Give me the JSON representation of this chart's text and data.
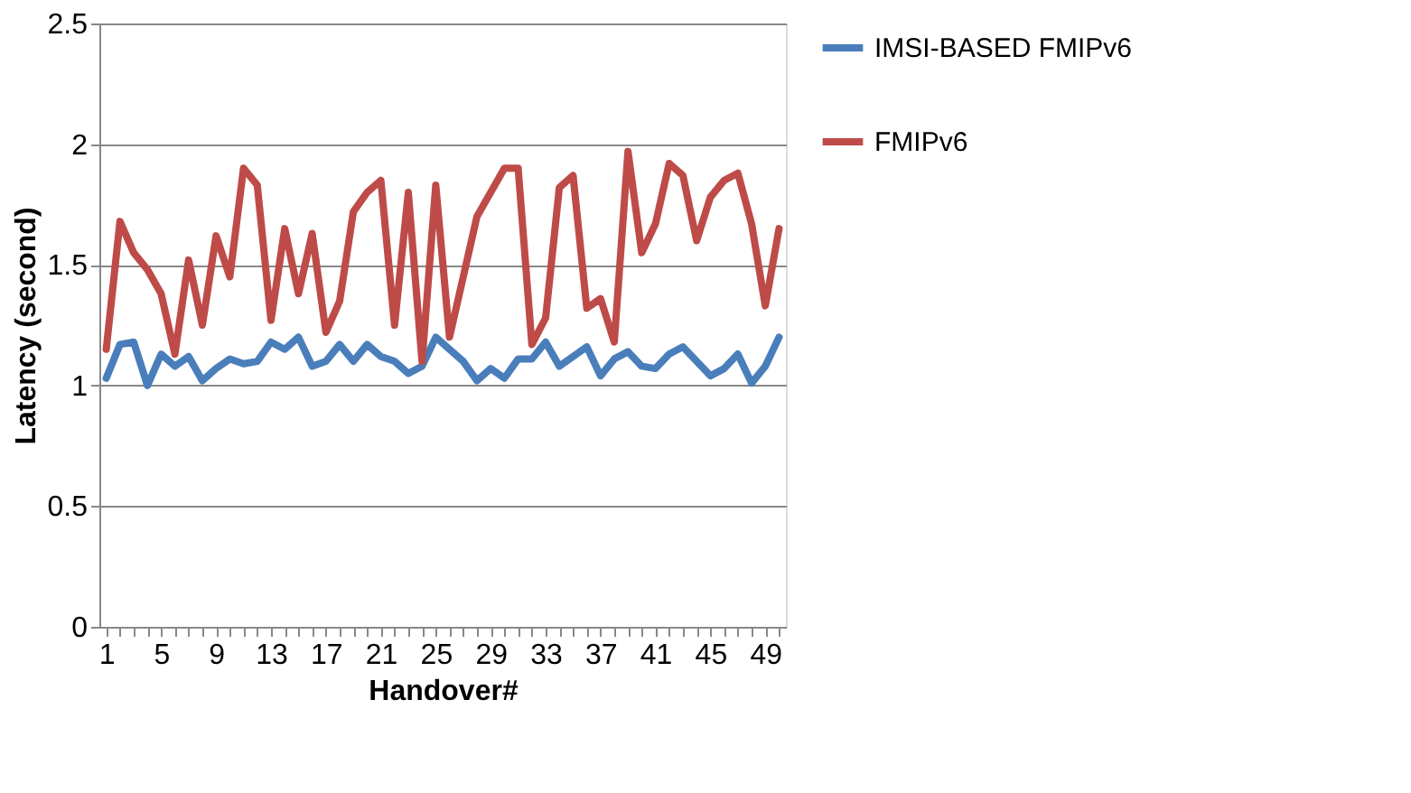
{
  "chart_data": {
    "type": "line",
    "xlabel": "Handover#",
    "ylabel": "Latency (second)",
    "categories": [
      "1",
      null,
      null,
      null,
      "5",
      null,
      null,
      null,
      "9",
      null,
      null,
      null,
      "13",
      null,
      null,
      null,
      "17",
      null,
      null,
      null,
      "21",
      null,
      null,
      null,
      "25",
      null,
      null,
      null,
      "29",
      null,
      null,
      null,
      "33",
      null,
      null,
      null,
      "37",
      null,
      null,
      null,
      "41",
      null,
      null,
      null,
      "45",
      null,
      null,
      null,
      "49",
      null
    ],
    "series": [
      {
        "name": "IMSI-BASED FMIPv6",
        "color": "#4a7ebb",
        "values": [
          1.03,
          1.17,
          1.18,
          1.0,
          1.13,
          1.08,
          1.12,
          1.02,
          1.07,
          1.11,
          1.09,
          1.1,
          1.18,
          1.15,
          1.2,
          1.08,
          1.1,
          1.17,
          1.1,
          1.17,
          1.12,
          1.1,
          1.05,
          1.08,
          1.2,
          1.15,
          1.1,
          1.02,
          1.07,
          1.03,
          1.11,
          1.11,
          1.18,
          1.08,
          1.12,
          1.16,
          1.04,
          1.11,
          1.14,
          1.08,
          1.07,
          1.13,
          1.16,
          1.1,
          1.04,
          1.07,
          1.13,
          1.01,
          1.08,
          1.2
        ]
      },
      {
        "name": "FMIPv6",
        "color": "#be4b48",
        "values": [
          1.15,
          1.68,
          1.55,
          1.48,
          1.38,
          1.13,
          1.52,
          1.25,
          1.62,
          1.45,
          1.9,
          1.83,
          1.27,
          1.65,
          1.38,
          1.63,
          1.22,
          1.35,
          1.72,
          1.8,
          1.85,
          1.25,
          1.8,
          1.1,
          1.83,
          1.2,
          1.45,
          1.7,
          1.8,
          1.9,
          1.9,
          1.17,
          1.28,
          1.82,
          1.87,
          1.32,
          1.36,
          1.18,
          1.97,
          1.55,
          1.67,
          1.92,
          1.87,
          1.6,
          1.78,
          1.85,
          1.88,
          1.67,
          1.33,
          1.65
        ]
      }
    ],
    "ylim": [
      0,
      2.5
    ],
    "yticks": [
      0,
      0.5,
      1,
      1.5,
      2,
      2.5
    ],
    "grid": "y",
    "legend": "right",
    "marker": "none",
    "line_style": "solid"
  }
}
